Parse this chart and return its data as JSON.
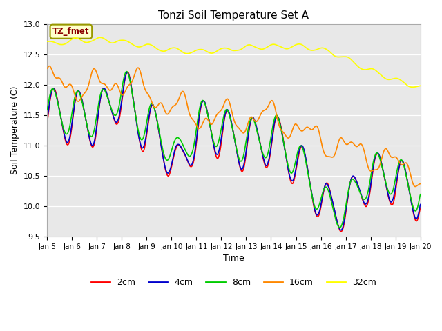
{
  "title": "Tonzi Soil Temperature Set A",
  "xlabel": "Time",
  "ylabel": "Soil Temperature (C)",
  "ylim": [
    9.5,
    13.0
  ],
  "background_color": "#ffffff",
  "plot_bg_color": "#e8e8e8",
  "annotation_text": "TZ_fmet",
  "annotation_bg": "#ffffcc",
  "annotation_border": "#999900",
  "annotation_text_color": "#8b0000",
  "series_colors": {
    "2cm": "#ff0000",
    "4cm": "#0000cc",
    "8cm": "#00cc00",
    "16cm": "#ff8800",
    "32cm": "#ffff00"
  },
  "x_tick_labels": [
    "Jan 5",
    "Jan 6",
    "Jan 7",
    "Jan 8",
    "Jan 9",
    "Jan 10",
    "Jan 11",
    "Jan 12",
    "Jan 13",
    "Jan 14",
    "Jan 15",
    "Jan 16",
    "Jan 17",
    "Jan 18",
    "Jan 19",
    "Jan 20"
  ],
  "yticks": [
    9.5,
    10.0,
    10.5,
    11.0,
    11.5,
    12.0,
    12.5,
    13.0
  ]
}
